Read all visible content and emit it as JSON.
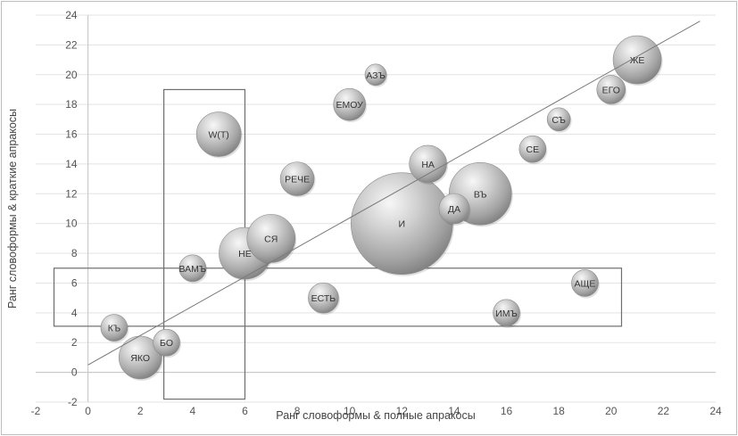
{
  "chart_data": {
    "type": "scatter",
    "xlabel": "Ранг словоформы & полные апракосы",
    "ylabel": "Ранг словоформы & краткие апракосы",
    "xlim": [
      -2,
      24
    ],
    "ylim": [
      -2,
      24
    ],
    "xticks": [
      "-2",
      "0",
      "2",
      "4",
      "6",
      "8",
      "10",
      "12",
      "14",
      "16",
      "18",
      "20",
      "22",
      "24"
    ],
    "yticks": [
      "-2",
      "0",
      "2",
      "4",
      "6",
      "8",
      "10",
      "12",
      "14",
      "16",
      "18",
      "20",
      "22",
      "24"
    ],
    "grid": "horizontal",
    "bubble_color": "#9e9e9e",
    "points": [
      {
        "label": "ЖЕ",
        "x": 21,
        "y": 21,
        "size": 27
      },
      {
        "label": "ЕГО",
        "x": 20,
        "y": 19,
        "size": 16
      },
      {
        "label": "АЗЪ",
        "x": 11,
        "y": 20,
        "size": 12
      },
      {
        "label": "ЕМОУ",
        "x": 10,
        "y": 18,
        "size": 18
      },
      {
        "label": "СЪ",
        "x": 18,
        "y": 17,
        "size": 13
      },
      {
        "label": "W(Т)",
        "x": 5,
        "y": 16,
        "size": 25
      },
      {
        "label": "СЕ",
        "x": 17,
        "y": 15,
        "size": 15
      },
      {
        "label": "НА",
        "x": 13,
        "y": 14,
        "size": 21
      },
      {
        "label": "РЕЧЕ",
        "x": 8,
        "y": 13,
        "size": 19
      },
      {
        "label": "ВЪ",
        "x": 15,
        "y": 12,
        "size": 35
      },
      {
        "label": "ДА",
        "x": 14,
        "y": 11,
        "size": 17
      },
      {
        "label": "И",
        "x": 12,
        "y": 10,
        "size": 57
      },
      {
        "label": "СЯ",
        "x": 7,
        "y": 9,
        "size": 27
      },
      {
        "label": "НЕ",
        "x": 6,
        "y": 8,
        "size": 29
      },
      {
        "label": "ВАМЪ",
        "x": 4,
        "y": 7,
        "size": 15
      },
      {
        "label": "АЩЕ",
        "x": 19,
        "y": 6,
        "size": 15
      },
      {
        "label": "ЕСТЬ",
        "x": 9,
        "y": 5,
        "size": 17
      },
      {
        "label": "ИМЪ",
        "x": 16,
        "y": 4,
        "size": 15
      },
      {
        "label": "КЪ",
        "x": 1,
        "y": 3,
        "size": 15
      },
      {
        "label": "БО",
        "x": 3,
        "y": 2,
        "size": 15
      },
      {
        "label": "ЯКО",
        "x": 2,
        "y": 1,
        "size": 24
      }
    ],
    "trendline": {
      "x": [
        0,
        23.4
      ],
      "y": [
        0.5,
        23.6
      ]
    },
    "annotation_rectangles": [
      {
        "x0": 2.9,
        "x1": 6,
        "y0": -1.8,
        "y1": 19
      },
      {
        "x0": -1.3,
        "x1": 20.4,
        "y0": 3.1,
        "y1": 7
      }
    ]
  }
}
